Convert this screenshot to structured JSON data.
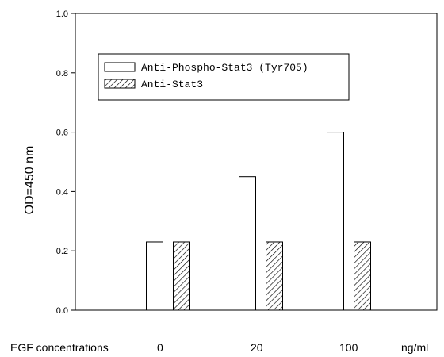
{
  "chart_data": {
    "type": "bar",
    "categories": [
      "0",
      "20",
      "100"
    ],
    "series": [
      {
        "name": "Anti-Phospho-Stat3 (Tyr705)",
        "values": [
          0.23,
          0.45,
          0.6
        ],
        "fill": "#ffffff"
      },
      {
        "name": "Anti-Stat3",
        "values": [
          0.23,
          0.23,
          0.23
        ],
        "fill": "hatch"
      }
    ],
    "title": "",
    "xlabel": "EGF concentrations",
    "xunit": "ng/ml",
    "ylabel": "OD=450 nm",
    "ylim": [
      0,
      1.0
    ],
    "yticks": [
      "0.0",
      "0.2",
      "0.4",
      "0.6",
      "0.8",
      "1.0"
    ],
    "grid": false,
    "legend_placement": "top-left"
  }
}
